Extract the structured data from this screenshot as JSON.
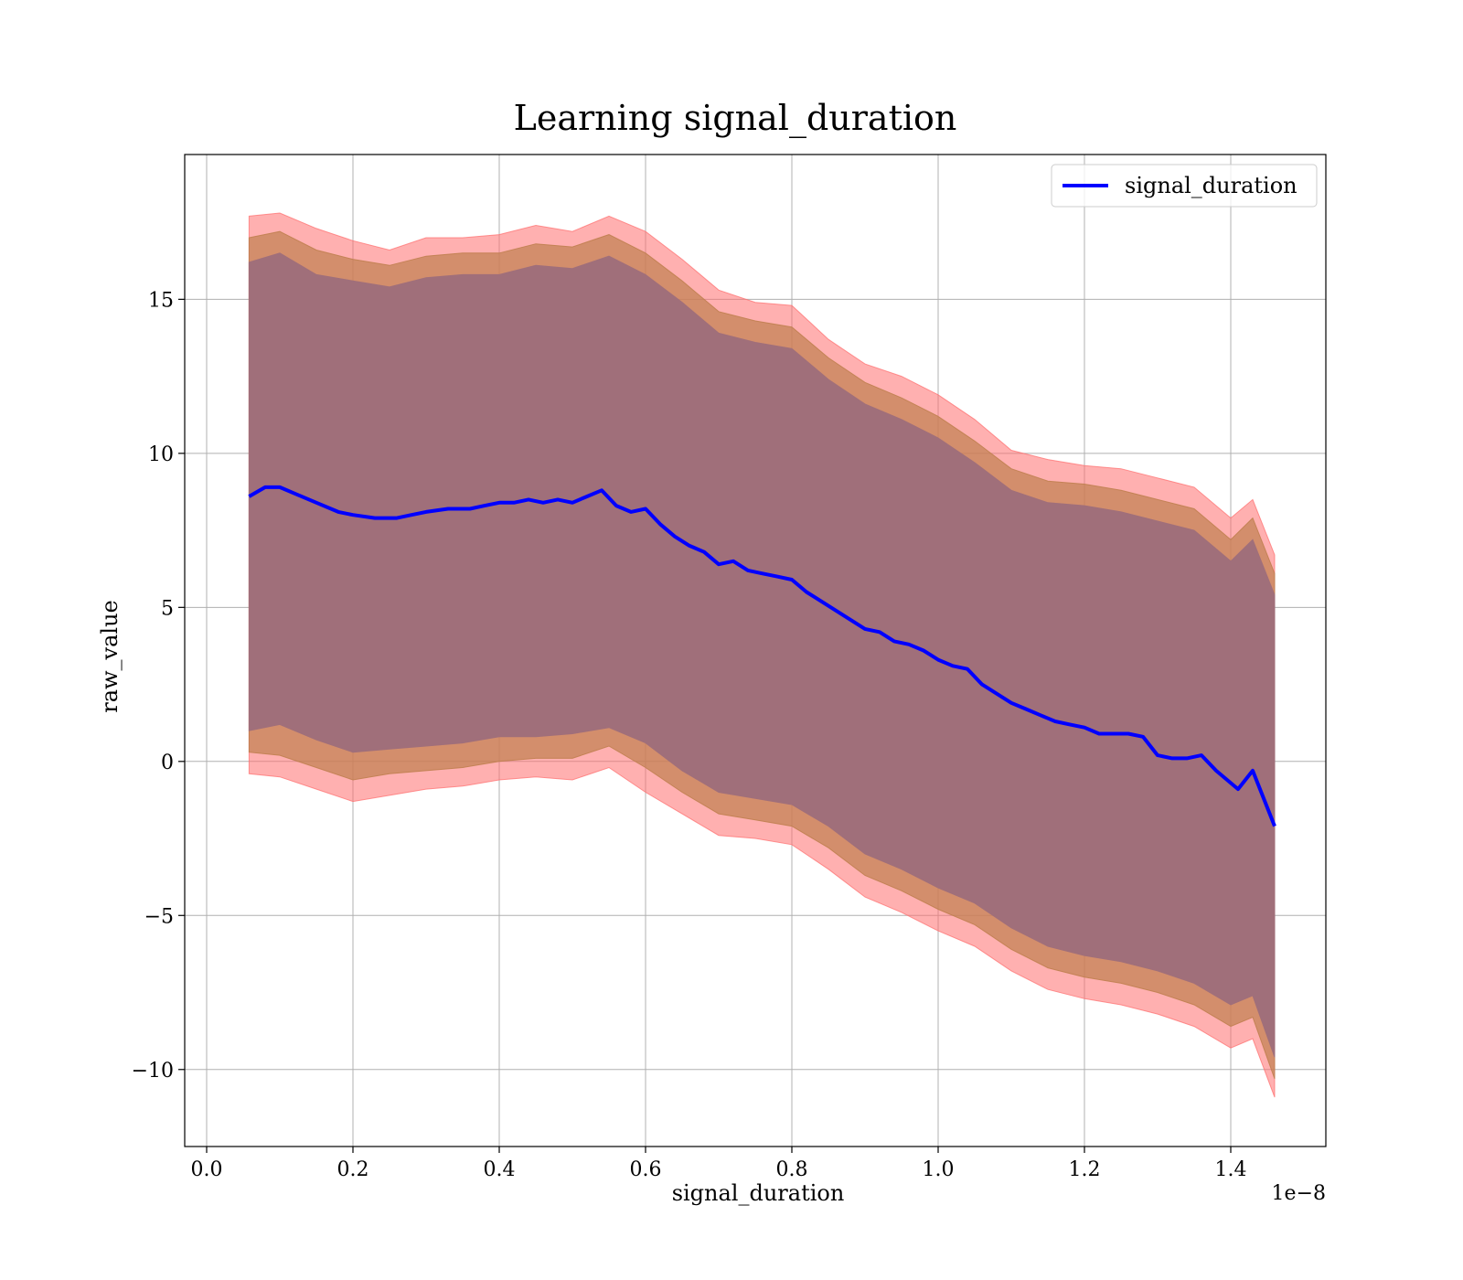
{
  "chart_data": {
    "type": "area",
    "title": "Learning signal_duration",
    "xlabel": "signal_duration",
    "ylabel": "raw_value",
    "x_offset_text": "1e−8",
    "xlim": [
      -0.03,
      1.53
    ],
    "ylim": [
      -12.5,
      19.7
    ],
    "grid": true,
    "legend_position": "top-right",
    "x_ticks": [
      0.0,
      0.2,
      0.4,
      0.6,
      0.8,
      1.0,
      1.2,
      1.4
    ],
    "x_tick_labels": [
      "0.0",
      "0.2",
      "0.4",
      "0.6",
      "0.8",
      "1.0",
      "1.2",
      "1.4"
    ],
    "y_ticks": [
      -10,
      -5,
      0,
      5,
      10,
      15
    ],
    "y_tick_labels": [
      "−10",
      "−5",
      "0",
      "5",
      "10",
      "15"
    ],
    "series": [
      {
        "name": "signal_duration",
        "color": "#0000ff",
        "x": [
          0.058,
          0.08,
          0.1,
          0.12,
          0.15,
          0.18,
          0.2,
          0.23,
          0.26,
          0.28,
          0.3,
          0.33,
          0.36,
          0.38,
          0.4,
          0.42,
          0.44,
          0.46,
          0.48,
          0.5,
          0.52,
          0.54,
          0.56,
          0.58,
          0.6,
          0.62,
          0.64,
          0.66,
          0.68,
          0.7,
          0.72,
          0.74,
          0.76,
          0.78,
          0.8,
          0.82,
          0.84,
          0.86,
          0.88,
          0.9,
          0.92,
          0.94,
          0.96,
          0.98,
          1.0,
          1.02,
          1.04,
          1.06,
          1.08,
          1.1,
          1.12,
          1.14,
          1.16,
          1.18,
          1.2,
          1.22,
          1.24,
          1.26,
          1.28,
          1.3,
          1.32,
          1.34,
          1.36,
          1.38,
          1.41,
          1.43,
          1.46
        ],
        "values": [
          8.6,
          8.9,
          8.9,
          8.7,
          8.4,
          8.1,
          8.0,
          7.9,
          7.9,
          8.0,
          8.1,
          8.2,
          8.2,
          8.3,
          8.4,
          8.4,
          8.5,
          8.4,
          8.5,
          8.4,
          8.6,
          8.8,
          8.3,
          8.1,
          8.2,
          7.7,
          7.3,
          7.0,
          6.8,
          6.4,
          6.5,
          6.2,
          6.1,
          6.0,
          5.9,
          5.5,
          5.2,
          4.9,
          4.6,
          4.3,
          4.2,
          3.9,
          3.8,
          3.6,
          3.3,
          3.1,
          3.0,
          2.5,
          2.2,
          1.9,
          1.7,
          1.5,
          1.3,
          1.2,
          1.1,
          0.9,
          0.9,
          0.9,
          0.8,
          0.2,
          0.1,
          0.1,
          0.2,
          -0.3,
          -0.9,
          -0.3,
          -2.1
        ]
      }
    ],
    "bands": [
      {
        "color": "#ff7070",
        "opacity": 0.55,
        "x": [
          0.058,
          0.1,
          0.15,
          0.2,
          0.25,
          0.3,
          0.35,
          0.4,
          0.45,
          0.5,
          0.55,
          0.6,
          0.65,
          0.7,
          0.75,
          0.8,
          0.85,
          0.9,
          0.95,
          1.0,
          1.05,
          1.1,
          1.15,
          1.2,
          1.25,
          1.3,
          1.35,
          1.4,
          1.43,
          1.46
        ],
        "upper": [
          17.7,
          17.8,
          17.3,
          16.9,
          16.6,
          17.0,
          17.0,
          17.1,
          17.4,
          17.2,
          17.7,
          17.2,
          16.3,
          15.3,
          14.9,
          14.8,
          13.7,
          12.9,
          12.5,
          11.9,
          11.1,
          10.1,
          9.8,
          9.6,
          9.5,
          9.2,
          8.9,
          7.9,
          8.5,
          6.7
        ],
        "lower": [
          -0.4,
          -0.5,
          -0.9,
          -1.3,
          -1.1,
          -0.9,
          -0.8,
          -0.6,
          -0.5,
          -0.6,
          -0.2,
          -1.0,
          -1.7,
          -2.4,
          -2.5,
          -2.7,
          -3.5,
          -4.4,
          -4.9,
          -5.5,
          -6.0,
          -6.8,
          -7.4,
          -7.7,
          -7.9,
          -8.2,
          -8.6,
          -9.3,
          -9.0,
          -10.9
        ]
      },
      {
        "color": "#c08050",
        "opacity": 0.7,
        "x": [
          0.058,
          0.1,
          0.15,
          0.2,
          0.25,
          0.3,
          0.35,
          0.4,
          0.45,
          0.5,
          0.55,
          0.6,
          0.65,
          0.7,
          0.75,
          0.8,
          0.85,
          0.9,
          0.95,
          1.0,
          1.05,
          1.1,
          1.15,
          1.2,
          1.25,
          1.3,
          1.35,
          1.4,
          1.43,
          1.46
        ],
        "upper": [
          17.0,
          17.2,
          16.6,
          16.3,
          16.1,
          16.4,
          16.5,
          16.5,
          16.8,
          16.7,
          17.1,
          16.5,
          15.6,
          14.6,
          14.3,
          14.1,
          13.1,
          12.3,
          11.8,
          11.2,
          10.4,
          9.5,
          9.1,
          9.0,
          8.8,
          8.5,
          8.2,
          7.2,
          7.9,
          6.1
        ],
        "lower": [
          0.3,
          0.2,
          -0.2,
          -0.6,
          -0.4,
          -0.3,
          -0.2,
          0.0,
          0.1,
          0.1,
          0.5,
          -0.2,
          -1.0,
          -1.7,
          -1.9,
          -2.1,
          -2.8,
          -3.7,
          -4.2,
          -4.8,
          -5.3,
          -6.1,
          -6.7,
          -7.0,
          -7.2,
          -7.5,
          -7.9,
          -8.6,
          -8.3,
          -10.3
        ]
      },
      {
        "color": "#a06f7a",
        "opacity": 1.0,
        "x": [
          0.058,
          0.1,
          0.15,
          0.2,
          0.25,
          0.3,
          0.35,
          0.4,
          0.45,
          0.5,
          0.55,
          0.6,
          0.65,
          0.7,
          0.75,
          0.8,
          0.85,
          0.9,
          0.95,
          1.0,
          1.05,
          1.1,
          1.15,
          1.2,
          1.25,
          1.3,
          1.35,
          1.4,
          1.43,
          1.46
        ],
        "upper": [
          16.2,
          16.5,
          15.8,
          15.6,
          15.4,
          15.7,
          15.8,
          15.8,
          16.1,
          16.0,
          16.4,
          15.8,
          14.9,
          13.9,
          13.6,
          13.4,
          12.4,
          11.6,
          11.1,
          10.5,
          9.7,
          8.8,
          8.4,
          8.3,
          8.1,
          7.8,
          7.5,
          6.5,
          7.2,
          5.4
        ],
        "lower": [
          1.0,
          1.2,
          0.7,
          0.3,
          0.4,
          0.5,
          0.6,
          0.8,
          0.8,
          0.9,
          1.1,
          0.6,
          -0.3,
          -1.0,
          -1.2,
          -1.4,
          -2.1,
          -3.0,
          -3.5,
          -4.1,
          -4.6,
          -5.4,
          -6.0,
          -6.3,
          -6.5,
          -6.8,
          -7.2,
          -7.9,
          -7.6,
          -9.6
        ]
      }
    ]
  }
}
